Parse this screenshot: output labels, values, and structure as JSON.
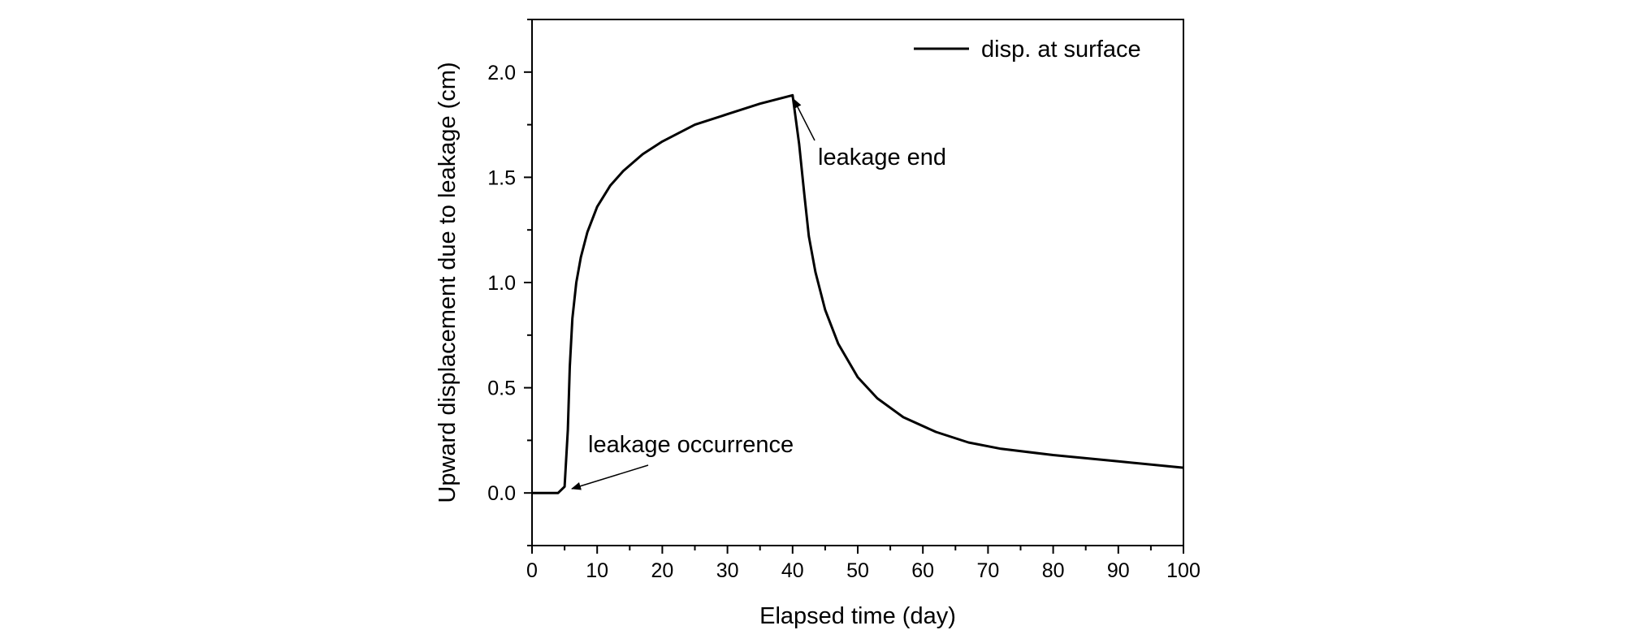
{
  "chart_data": {
    "type": "line",
    "xlabel": "Elapsed time (day)",
    "ylabel": "Upward displacement due to leakage (cm)",
    "xlim": [
      0,
      100
    ],
    "ylim": [
      -0.25,
      2.25
    ],
    "xticks": [
      0,
      10,
      20,
      30,
      40,
      50,
      60,
      70,
      80,
      90,
      100
    ],
    "xtick_labels": [
      "0",
      "10",
      "20",
      "30",
      "40",
      "50",
      "60",
      "70",
      "80",
      "90",
      "100"
    ],
    "yticks": [
      0.0,
      0.5,
      1.0,
      1.5,
      2.0
    ],
    "ytick_labels": [
      "0.0",
      "0.5",
      "1.0",
      "1.5",
      "2.0"
    ],
    "grid": false,
    "legend": {
      "position": "top-right",
      "entries": [
        "disp. at surface"
      ]
    },
    "series": [
      {
        "name": "disp. at surface",
        "color": "#000000",
        "x": [
          0,
          4,
          5,
          5.5,
          5.8,
          6.2,
          6.8,
          7.5,
          8.5,
          10,
          12,
          14,
          17,
          20,
          25,
          30,
          35,
          40,
          41,
          41.8,
          42.5,
          43.5,
          45,
          47,
          50,
          53,
          57,
          62,
          67,
          72,
          80,
          90,
          100
        ],
        "y": [
          0,
          0,
          0.03,
          0.3,
          0.6,
          0.83,
          1.0,
          1.12,
          1.24,
          1.36,
          1.46,
          1.53,
          1.61,
          1.67,
          1.75,
          1.8,
          1.85,
          1.89,
          1.66,
          1.42,
          1.22,
          1.05,
          0.87,
          0.71,
          0.55,
          0.45,
          0.36,
          0.29,
          0.24,
          0.21,
          0.18,
          0.15,
          0.12
        ]
      }
    ],
    "annotations": [
      {
        "text": "leakage end",
        "x": 40,
        "y": 1.89
      },
      {
        "text": "leakage occurrence",
        "x": 5.5,
        "y": 0.02
      }
    ]
  }
}
